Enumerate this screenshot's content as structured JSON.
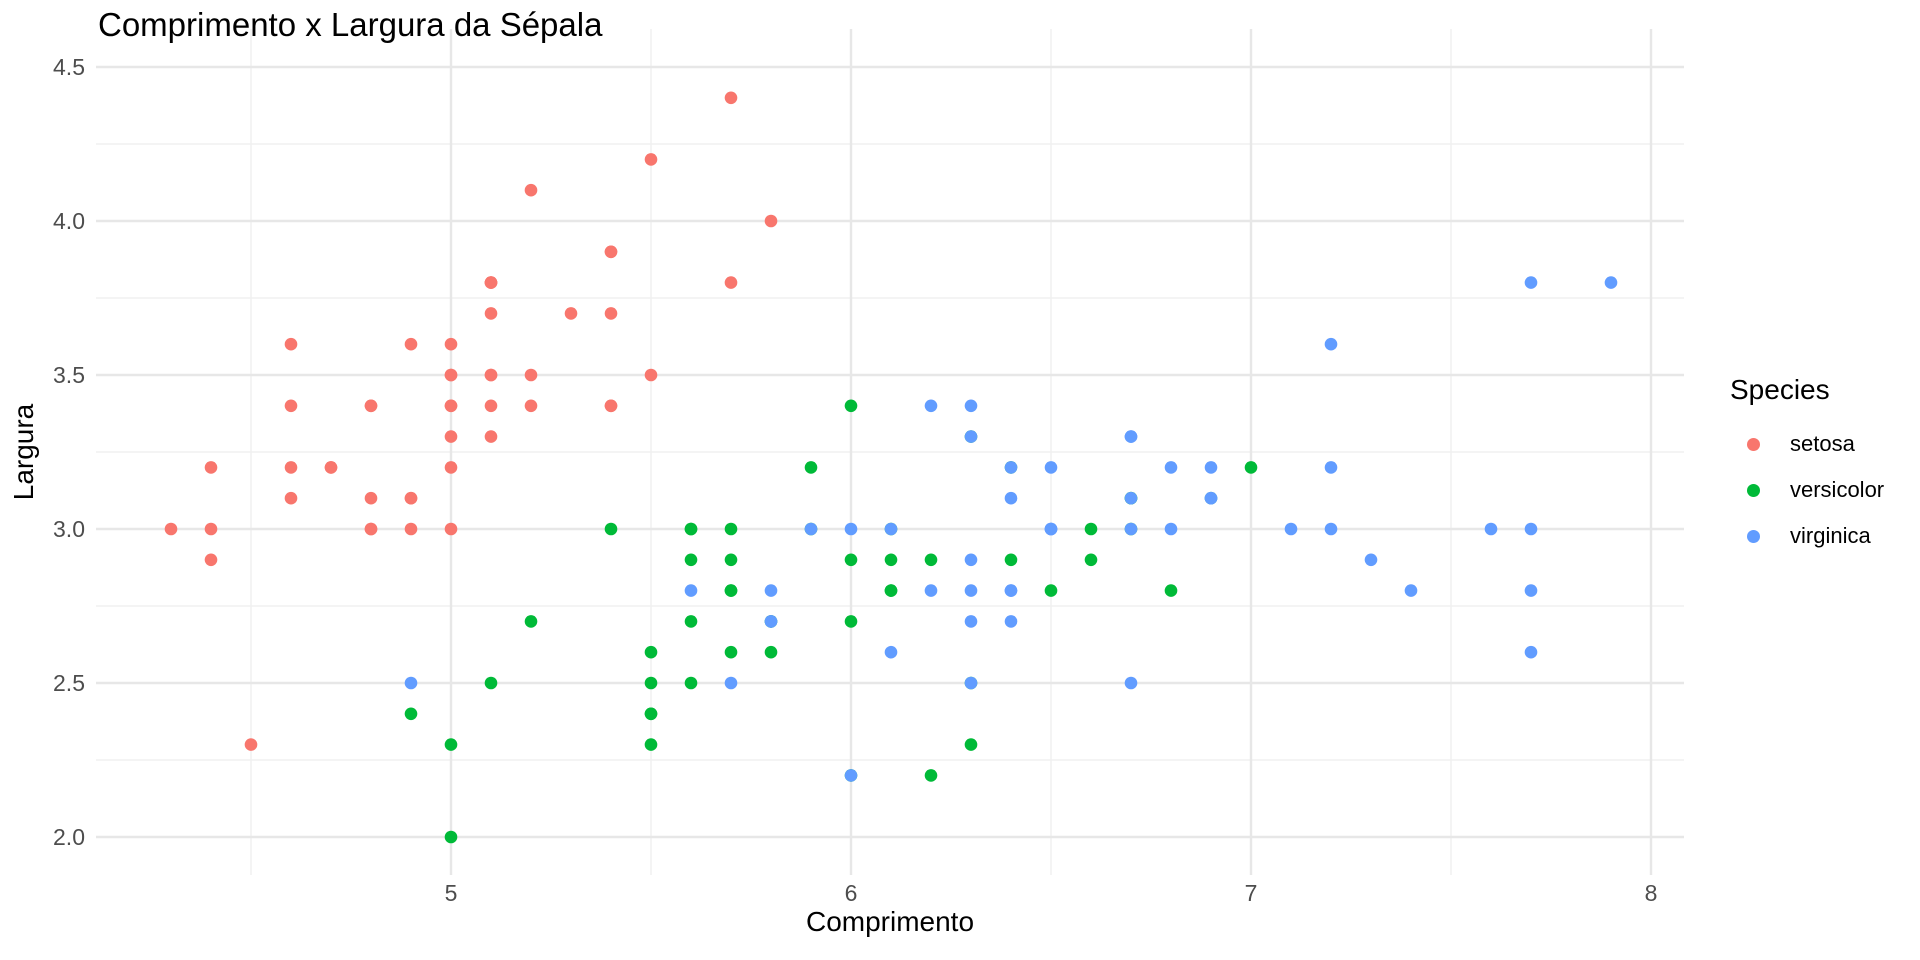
{
  "colors": {
    "background": "#ffffff",
    "title_text": "#000000",
    "tick_label": "#4d4d4d",
    "grid_major": "#e7e7e7",
    "grid_minor": "#f0f0f0"
  },
  "chart_data": {
    "type": "scatter",
    "title": "Comprimento x Largura da Sépala",
    "xlabel": "Comprimento",
    "ylabel": "Largura",
    "legend_title": "Species",
    "legend_position": "right",
    "grid": true,
    "xlim": [
      4.1125,
      8.0825
    ],
    "ylim": [
      1.8766,
      4.6234
    ],
    "x_ticks": [
      {
        "value": 5,
        "label": "5"
      },
      {
        "value": 6,
        "label": "6"
      },
      {
        "value": 7,
        "label": "7"
      },
      {
        "value": 8,
        "label": "8"
      }
    ],
    "y_ticks": [
      {
        "value": 2.0,
        "label": "2.0"
      },
      {
        "value": 2.5,
        "label": "2.5"
      },
      {
        "value": 3.0,
        "label": "3.0"
      },
      {
        "value": 3.5,
        "label": "3.5"
      },
      {
        "value": 4.0,
        "label": "4.0"
      },
      {
        "value": 4.5,
        "label": "4.5"
      }
    ],
    "x_minor_ticks": [
      4.5,
      5.5,
      6.5,
      7.5
    ],
    "y_minor_ticks": [
      2.25,
      2.75,
      3.25,
      3.75,
      4.25
    ],
    "series": [
      {
        "name": "setosa",
        "color": "#F8766D",
        "points": [
          [
            5.1,
            3.5
          ],
          [
            4.9,
            3.0
          ],
          [
            4.7,
            3.2
          ],
          [
            4.6,
            3.1
          ],
          [
            5.0,
            3.6
          ],
          [
            5.4,
            3.9
          ],
          [
            4.6,
            3.4
          ],
          [
            5.0,
            3.4
          ],
          [
            4.4,
            2.9
          ],
          [
            4.9,
            3.1
          ],
          [
            5.4,
            3.7
          ],
          [
            4.8,
            3.4
          ],
          [
            4.8,
            3.0
          ],
          [
            4.3,
            3.0
          ],
          [
            5.8,
            4.0
          ],
          [
            5.7,
            4.4
          ],
          [
            5.4,
            3.9
          ],
          [
            5.1,
            3.5
          ],
          [
            5.7,
            3.8
          ],
          [
            5.1,
            3.8
          ],
          [
            5.4,
            3.4
          ],
          [
            5.1,
            3.7
          ],
          [
            4.6,
            3.6
          ],
          [
            5.1,
            3.3
          ],
          [
            4.8,
            3.4
          ],
          [
            5.0,
            3.0
          ],
          [
            5.0,
            3.4
          ],
          [
            5.2,
            3.5
          ],
          [
            5.2,
            3.4
          ],
          [
            4.7,
            3.2
          ],
          [
            4.8,
            3.1
          ],
          [
            5.4,
            3.4
          ],
          [
            5.2,
            4.1
          ],
          [
            5.5,
            4.2
          ],
          [
            4.9,
            3.1
          ],
          [
            5.0,
            3.2
          ],
          [
            5.5,
            3.5
          ],
          [
            4.9,
            3.6
          ],
          [
            4.4,
            3.0
          ],
          [
            5.1,
            3.4
          ],
          [
            5.0,
            3.5
          ],
          [
            4.5,
            2.3
          ],
          [
            4.4,
            3.2
          ],
          [
            5.0,
            3.5
          ],
          [
            5.1,
            3.8
          ],
          [
            4.8,
            3.0
          ],
          [
            5.1,
            3.8
          ],
          [
            4.6,
            3.2
          ],
          [
            5.3,
            3.7
          ],
          [
            5.0,
            3.3
          ]
        ]
      },
      {
        "name": "versicolor",
        "color": "#00BA38",
        "points": [
          [
            7.0,
            3.2
          ],
          [
            6.4,
            3.2
          ],
          [
            6.9,
            3.1
          ],
          [
            5.5,
            2.3
          ],
          [
            6.5,
            2.8
          ],
          [
            5.7,
            2.8
          ],
          [
            6.3,
            3.3
          ],
          [
            4.9,
            2.4
          ],
          [
            6.6,
            2.9
          ],
          [
            5.2,
            2.7
          ],
          [
            5.0,
            2.0
          ],
          [
            5.9,
            3.0
          ],
          [
            6.0,
            2.2
          ],
          [
            6.1,
            2.9
          ],
          [
            5.6,
            2.9
          ],
          [
            6.7,
            3.1
          ],
          [
            5.6,
            3.0
          ],
          [
            5.8,
            2.7
          ],
          [
            6.2,
            2.2
          ],
          [
            5.6,
            2.5
          ],
          [
            5.9,
            3.2
          ],
          [
            6.1,
            2.8
          ],
          [
            6.3,
            2.5
          ],
          [
            6.1,
            2.8
          ],
          [
            6.4,
            2.9
          ],
          [
            6.6,
            3.0
          ],
          [
            6.8,
            2.8
          ],
          [
            6.7,
            3.0
          ],
          [
            6.0,
            2.9
          ],
          [
            5.7,
            2.6
          ],
          [
            5.5,
            2.4
          ],
          [
            5.5,
            2.4
          ],
          [
            5.8,
            2.7
          ],
          [
            6.0,
            2.7
          ],
          [
            5.4,
            3.0
          ],
          [
            6.0,
            3.4
          ],
          [
            6.7,
            3.1
          ],
          [
            6.3,
            2.3
          ],
          [
            5.6,
            3.0
          ],
          [
            5.5,
            2.5
          ],
          [
            5.5,
            2.6
          ],
          [
            6.1,
            3.0
          ],
          [
            5.8,
            2.6
          ],
          [
            5.0,
            2.3
          ],
          [
            5.6,
            2.7
          ],
          [
            5.7,
            3.0
          ],
          [
            5.7,
            2.9
          ],
          [
            6.2,
            2.9
          ],
          [
            5.1,
            2.5
          ],
          [
            5.7,
            2.8
          ]
        ]
      },
      {
        "name": "virginica",
        "color": "#619CFF",
        "points": [
          [
            6.3,
            3.3
          ],
          [
            5.8,
            2.7
          ],
          [
            7.1,
            3.0
          ],
          [
            6.3,
            2.9
          ],
          [
            6.5,
            3.0
          ],
          [
            7.6,
            3.0
          ],
          [
            4.9,
            2.5
          ],
          [
            7.3,
            2.9
          ],
          [
            6.7,
            2.5
          ],
          [
            7.2,
            3.6
          ],
          [
            6.5,
            3.2
          ],
          [
            6.4,
            2.7
          ],
          [
            6.8,
            3.0
          ],
          [
            5.7,
            2.5
          ],
          [
            5.8,
            2.8
          ],
          [
            6.4,
            3.2
          ],
          [
            6.5,
            3.0
          ],
          [
            7.7,
            3.8
          ],
          [
            7.7,
            2.6
          ],
          [
            6.0,
            2.2
          ],
          [
            6.9,
            3.2
          ],
          [
            5.6,
            2.8
          ],
          [
            7.7,
            2.8
          ],
          [
            6.3,
            2.7
          ],
          [
            6.7,
            3.3
          ],
          [
            7.2,
            3.2
          ],
          [
            6.2,
            2.8
          ],
          [
            6.1,
            3.0
          ],
          [
            6.4,
            2.8
          ],
          [
            7.2,
            3.0
          ],
          [
            7.4,
            2.8
          ],
          [
            7.9,
            3.8
          ],
          [
            6.4,
            2.8
          ],
          [
            6.3,
            2.8
          ],
          [
            6.1,
            2.6
          ],
          [
            7.7,
            3.0
          ],
          [
            6.3,
            3.4
          ],
          [
            6.4,
            3.1
          ],
          [
            6.0,
            3.0
          ],
          [
            6.9,
            3.1
          ],
          [
            6.7,
            3.1
          ],
          [
            6.9,
            3.1
          ],
          [
            5.8,
            2.7
          ],
          [
            6.8,
            3.2
          ],
          [
            6.7,
            3.3
          ],
          [
            6.7,
            3.0
          ],
          [
            6.3,
            2.5
          ],
          [
            6.5,
            3.0
          ],
          [
            6.2,
            3.4
          ],
          [
            5.9,
            3.0
          ]
        ]
      }
    ]
  }
}
